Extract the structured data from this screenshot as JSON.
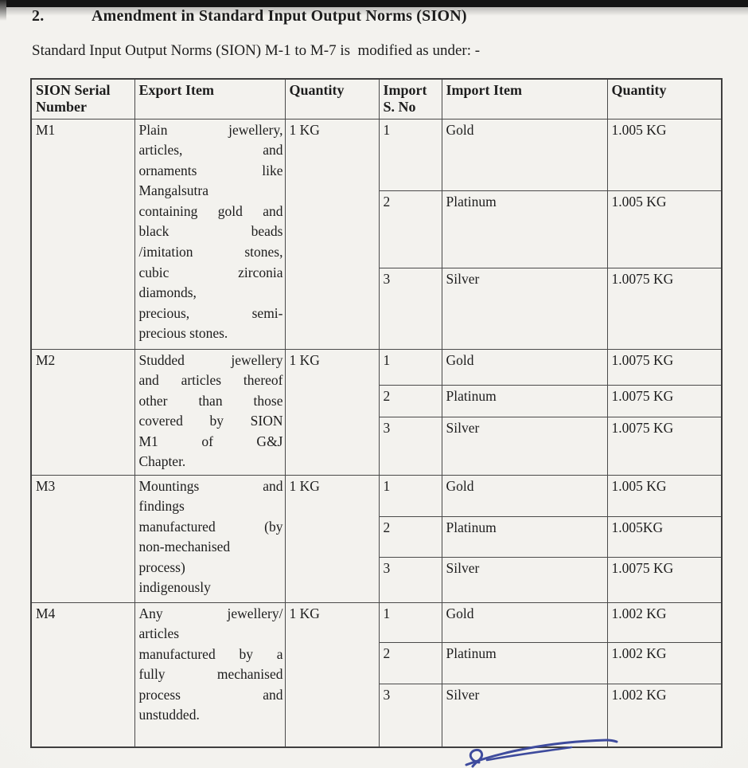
{
  "page": {
    "section_number": "2.",
    "title": "Amendment in Standard Input Output Norms (SION)",
    "intro": "Standard Input Output Norms (SION) M-1 to M-7 is  modified as under: -"
  },
  "table": {
    "headers": [
      "SION Serial\nNumber",
      "Export Item",
      "Quantity",
      "Import\nS. No",
      "Import Item",
      "Quantity"
    ],
    "rows": [
      {
        "sion": "M1",
        "export_item": "Plain jewellery, articles, and ornaments like Mangalsutra containing gold and black beads /imitation stones, cubic zirconia diamonds, precious, semi-precious stones.",
        "export_item_lines": [
          "Plain jewellery,",
          "articles, and",
          "ornaments like",
          "Mangalsutra",
          "containing gold and",
          "black beads",
          "/imitation stones,",
          "cubic zirconia",
          "diamonds,",
          "precious, semi-",
          "precious stones."
        ],
        "export_quantity": "1 KG",
        "imports": [
          {
            "s_no": "1",
            "item": "Gold",
            "quantity": "1.005 KG"
          },
          {
            "s_no": "2",
            "item": "Platinum",
            "quantity": "1.005 KG"
          },
          {
            "s_no": "3",
            "item": "Silver",
            "quantity": "1.0075 KG"
          }
        ]
      },
      {
        "sion": "M2",
        "export_item": "Studded jewellery and articles thereof other than those covered by SION M1 of G&J Chapter.",
        "export_item_lines": [
          "Studded jewellery",
          "and articles thereof",
          "other than those",
          "covered by SION",
          "M1 of G&J",
          "Chapter."
        ],
        "export_quantity": "1 KG",
        "imports": [
          {
            "s_no": "1",
            "item": "Gold",
            "quantity": "1.0075 KG"
          },
          {
            "s_no": "2",
            "item": "Platinum",
            "quantity": "1.0075 KG"
          },
          {
            "s_no": "3",
            "item": "Silver",
            "quantity": "1.0075 KG"
          }
        ]
      },
      {
        "sion": "M3",
        "export_item": "Mountings and findings manufactured (by non-mechanised process) indigenously",
        "export_item_lines": [
          "Mountings and",
          "findings",
          "manufactured (by",
          "non-mechanised",
          "process)",
          "indigenously"
        ],
        "export_quantity": "1 KG",
        "imports": [
          {
            "s_no": "1",
            "item": "Gold",
            "quantity": "1.005 KG"
          },
          {
            "s_no": "2",
            "item": "Platinum",
            "quantity": "1.005KG"
          },
          {
            "s_no": "3",
            "item": "Silver",
            "quantity": "1.0075 KG"
          }
        ]
      },
      {
        "sion": "M4",
        "export_item": "Any jewellery/ articles manufactured by a fully mechanised process and unstudded.",
        "export_item_lines": [
          "Any jewellery/",
          "articles",
          "manufactured by a",
          "fully mechanised",
          "process and",
          "unstudded."
        ],
        "export_quantity": "1 KG",
        "imports": [
          {
            "s_no": "1",
            "item": "Gold",
            "quantity": "1.002 KG"
          },
          {
            "s_no": "2",
            "item": "Platinum",
            "quantity": "1.002 KG"
          },
          {
            "s_no": "3",
            "item": "Silver",
            "quantity": "1.002 KG"
          }
        ]
      }
    ]
  },
  "signature": {
    "color": "#3e4b9d"
  }
}
